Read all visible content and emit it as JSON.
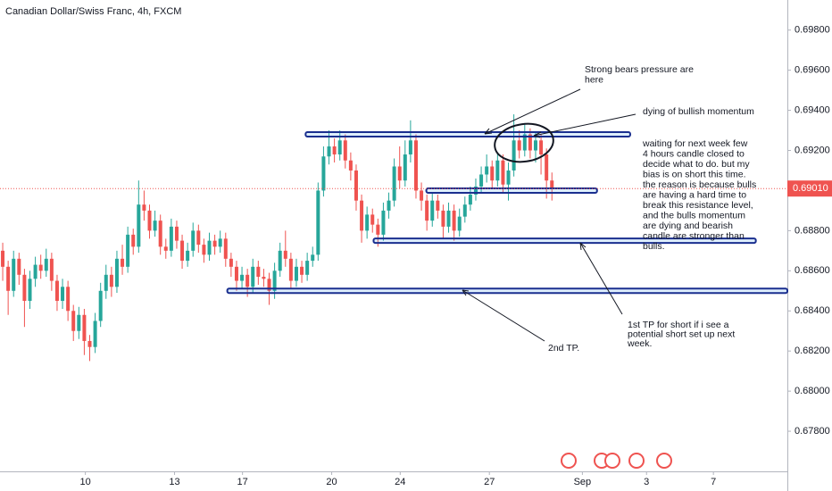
{
  "chart_data": {
    "type": "candlestick",
    "title": "Canadian Dollar/Swiss Franc, 4h, FXCM",
    "up_color": "#26a69a",
    "down_color": "#ef5350",
    "x": [
      0,
      1,
      2,
      3,
      4,
      5,
      6,
      7,
      8,
      9,
      10,
      11,
      12,
      13,
      14,
      15,
      16,
      17,
      18,
      19,
      20,
      21,
      22,
      23,
      24,
      25,
      26,
      27,
      28,
      29,
      30,
      31,
      32,
      33,
      34,
      35,
      36,
      37,
      38,
      39,
      40,
      41,
      42,
      43,
      44,
      45,
      46,
      47,
      48,
      49,
      50,
      51,
      52,
      53,
      54,
      55,
      56,
      57,
      58,
      59,
      60,
      61,
      62,
      63,
      64,
      65,
      66,
      67,
      68,
      69,
      70,
      71,
      72,
      73,
      74,
      75,
      76,
      77,
      78,
      79,
      80,
      81,
      82,
      83,
      84,
      85,
      86,
      87,
      88,
      89,
      90,
      91,
      92,
      93,
      94,
      95,
      96,
      97,
      98,
      99,
      100,
      101
    ],
    "open": [
      0.687,
      0.6862,
      0.685,
      0.6866,
      0.6858,
      0.6845,
      0.6856,
      0.6863,
      0.686,
      0.6866,
      0.6855,
      0.6845,
      0.6852,
      0.684,
      0.683,
      0.6838,
      0.6825,
      0.6822,
      0.6835,
      0.685,
      0.6858,
      0.6852,
      0.6866,
      0.6862,
      0.6878,
      0.6872,
      0.6893,
      0.689,
      0.688,
      0.6885,
      0.6872,
      0.687,
      0.6882,
      0.6875,
      0.6865,
      0.687,
      0.688,
      0.6873,
      0.6868,
      0.6875,
      0.6872,
      0.6876,
      0.6866,
      0.6862,
      0.6855,
      0.6858,
      0.6852,
      0.6862,
      0.6857,
      0.6856,
      0.685,
      0.686,
      0.687,
      0.6866,
      0.6855,
      0.6862,
      0.6858,
      0.6865,
      0.6868,
      0.69,
      0.6917,
      0.6922,
      0.6918,
      0.6925,
      0.6915,
      0.691,
      0.6895,
      0.688,
      0.6888,
      0.6883,
      0.6878,
      0.689,
      0.6895,
      0.6912,
      0.6905,
      0.6918,
      0.6925,
      0.69,
      0.6895,
      0.6885,
      0.6895,
      0.689,
      0.6882,
      0.689,
      0.688,
      0.6887,
      0.6893,
      0.6898,
      0.6902,
      0.6908,
      0.6912,
      0.6905,
      0.6915,
      0.6903,
      0.691,
      0.6925,
      0.692,
      0.6928,
      0.692,
      0.6925,
      0.6918,
      0.6905
    ],
    "high": [
      0.6874,
      0.6865,
      0.687,
      0.6869,
      0.6861,
      0.686,
      0.6867,
      0.6868,
      0.6871,
      0.6869,
      0.6858,
      0.6856,
      0.6855,
      0.6843,
      0.6842,
      0.6841,
      0.6828,
      0.6839,
      0.6854,
      0.6863,
      0.6862,
      0.687,
      0.6873,
      0.6882,
      0.6881,
      0.6905,
      0.69,
      0.6893,
      0.689,
      0.6888,
      0.6876,
      0.6886,
      0.6885,
      0.6878,
      0.6874,
      0.6884,
      0.6883,
      0.6876,
      0.6879,
      0.6878,
      0.688,
      0.6879,
      0.6869,
      0.6865,
      0.6862,
      0.6861,
      0.6866,
      0.6865,
      0.6861,
      0.6859,
      0.6864,
      0.6874,
      0.688,
      0.6869,
      0.6866,
      0.6865,
      0.6869,
      0.6872,
      0.6904,
      0.6922,
      0.693,
      0.6926,
      0.693,
      0.6928,
      0.6919,
      0.6913,
      0.6898,
      0.6892,
      0.6891,
      0.6886,
      0.6894,
      0.6899,
      0.6916,
      0.6922,
      0.6925,
      0.6935,
      0.6928,
      0.6904,
      0.6898,
      0.6899,
      0.6898,
      0.6893,
      0.6894,
      0.6893,
      0.6891,
      0.6897,
      0.6902,
      0.6906,
      0.6912,
      0.6918,
      0.6915,
      0.6919,
      0.6918,
      0.6914,
      0.6938,
      0.693,
      0.6933,
      0.6931,
      0.6929,
      0.6928,
      0.6921,
      0.6909
    ],
    "low": [
      0.6855,
      0.6838,
      0.6847,
      0.6853,
      0.6832,
      0.6841,
      0.6852,
      0.6856,
      0.6857,
      0.685,
      0.684,
      0.6841,
      0.6835,
      0.6825,
      0.6826,
      0.6818,
      0.6815,
      0.6819,
      0.6832,
      0.6846,
      0.6847,
      0.6849,
      0.6858,
      0.6859,
      0.6868,
      0.6869,
      0.6885,
      0.6876,
      0.6877,
      0.6868,
      0.6866,
      0.6867,
      0.6871,
      0.6861,
      0.6862,
      0.6867,
      0.6869,
      0.6864,
      0.6865,
      0.6868,
      0.6869,
      0.6862,
      0.6857,
      0.685,
      0.6851,
      0.6847,
      0.6849,
      0.6853,
      0.6852,
      0.6843,
      0.6846,
      0.6857,
      0.6862,
      0.6851,
      0.6852,
      0.6854,
      0.6855,
      0.6862,
      0.6865,
      0.6897,
      0.6913,
      0.6914,
      0.6915,
      0.6911,
      0.6905,
      0.689,
      0.6874,
      0.6876,
      0.6879,
      0.6872,
      0.6875,
      0.6886,
      0.6892,
      0.6901,
      0.6902,
      0.6914,
      0.6896,
      0.689,
      0.688,
      0.6882,
      0.6886,
      0.6876,
      0.6879,
      0.6875,
      0.6877,
      0.6884,
      0.689,
      0.6895,
      0.6899,
      0.6904,
      0.6901,
      0.6902,
      0.6899,
      0.6895,
      0.6907,
      0.6916,
      0.6917,
      0.6916,
      0.6914,
      0.6908,
      0.6896,
      0.6895
    ],
    "close": [
      0.6862,
      0.685,
      0.6866,
      0.6858,
      0.6845,
      0.6856,
      0.6863,
      0.686,
      0.6866,
      0.6855,
      0.6845,
      0.6852,
      0.684,
      0.683,
      0.6838,
      0.6825,
      0.6822,
      0.6835,
      0.685,
      0.6858,
      0.6852,
      0.6866,
      0.6862,
      0.6878,
      0.6872,
      0.6893,
      0.689,
      0.688,
      0.6885,
      0.6872,
      0.687,
      0.6882,
      0.6875,
      0.6865,
      0.687,
      0.688,
      0.6873,
      0.6868,
      0.6875,
      0.6872,
      0.6876,
      0.6866,
      0.6862,
      0.6855,
      0.6858,
      0.6852,
      0.6862,
      0.6857,
      0.6856,
      0.685,
      0.686,
      0.687,
      0.6866,
      0.6855,
      0.6862,
      0.6858,
      0.6865,
      0.6868,
      0.69,
      0.6917,
      0.6922,
      0.6918,
      0.6925,
      0.6915,
      0.691,
      0.6895,
      0.688,
      0.6888,
      0.6883,
      0.6878,
      0.689,
      0.6895,
      0.6912,
      0.6905,
      0.6918,
      0.6925,
      0.69,
      0.6895,
      0.6885,
      0.6895,
      0.689,
      0.6882,
      0.689,
      0.688,
      0.6887,
      0.6893,
      0.6898,
      0.6902,
      0.6908,
      0.6912,
      0.6905,
      0.6915,
      0.6903,
      0.691,
      0.6925,
      0.692,
      0.6928,
      0.692,
      0.6925,
      0.6918,
      0.6905,
      0.6901
    ],
    "xlim": [
      -0.5,
      144.3
    ],
    "xticks": [
      {
        "value": 15.2,
        "label": "10"
      },
      {
        "value": 31.6,
        "label": "13"
      },
      {
        "value": 44.1,
        "label": "17"
      },
      {
        "value": 60.5,
        "label": "20"
      },
      {
        "value": 73.1,
        "label": "24"
      },
      {
        "value": 89.5,
        "label": "27"
      },
      {
        "value": 106.6,
        "label": "Sep"
      },
      {
        "value": 118.4,
        "label": "3"
      },
      {
        "value": 130.7,
        "label": "7"
      }
    ],
    "ylim": [
      0.676,
      0.6995
    ],
    "yticks": [
      {
        "value": 0.698,
        "label": "0.69800"
      },
      {
        "value": 0.696,
        "label": "0.69600"
      },
      {
        "value": 0.694,
        "label": "0.69400"
      },
      {
        "value": 0.692,
        "label": "0.69200"
      },
      {
        "value": 0.688,
        "label": "0.68800"
      },
      {
        "value": 0.686,
        "label": "0.68600"
      },
      {
        "value": 0.684,
        "label": "0.68400"
      },
      {
        "value": 0.682,
        "label": "0.68200"
      },
      {
        "value": 0.68,
        "label": "0.68000"
      },
      {
        "value": 0.678,
        "label": "0.67800"
      }
    ],
    "last_price": {
      "value": 0.6901,
      "label": "0.69010"
    },
    "levels": [
      {
        "price": 0.6928,
        "x": [
          55.7,
          115.4
        ]
      },
      {
        "price": 0.69,
        "x": [
          77.9,
          109.3
        ]
      },
      {
        "price": 0.6875,
        "x": [
          68.2,
          138.5
        ]
      },
      {
        "price": 0.685,
        "x": [
          41.3,
          144.3
        ]
      }
    ],
    "annotations": {
      "bears": [
        "Strong bears pressure are",
        "here"
      ],
      "dying": [
        "dying of bullish momentum"
      ],
      "note": [
        "waiting for next week few",
        "4 hours candle closed to",
        "decide what to do. but my",
        "bias is on short this time.",
        "the reason is because bulls",
        "are having a hard time to",
        "break this resistance level,",
        "and the bulls momentum",
        "are dying and bearish",
        "candle are stronger than",
        "bulls."
      ],
      "tp1": [
        "1st TP for short if i see a",
        "potential short set up next",
        "week."
      ],
      "tp2": [
        "2nd TP."
      ]
    }
  }
}
